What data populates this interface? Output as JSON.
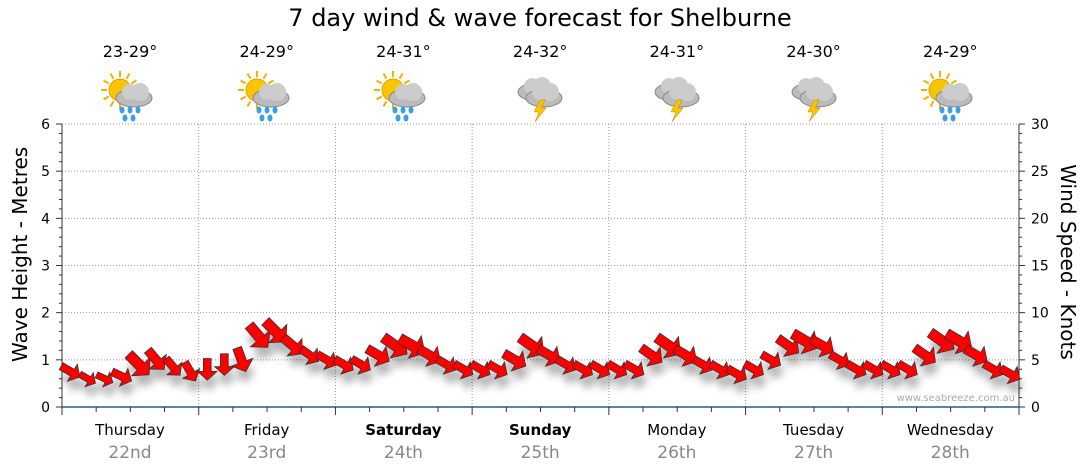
{
  "title": "7 day wind & wave forecast for Shelburne",
  "days": [
    {
      "name": "Thursday",
      "date": "22nd",
      "temp": "23-29°",
      "icon": "sun-cloud-rain-icon",
      "bold": false
    },
    {
      "name": "Friday",
      "date": "23rd",
      "temp": "24-29°",
      "icon": "sun-cloud-rain-icon",
      "bold": false
    },
    {
      "name": "Saturday",
      "date": "24th",
      "temp": "24-31°",
      "icon": "sun-cloud-rain-icon",
      "bold": true
    },
    {
      "name": "Sunday",
      "date": "25th",
      "temp": "24-32°",
      "icon": "storm-icon",
      "bold": true
    },
    {
      "name": "Monday",
      "date": "26th",
      "temp": "24-31°",
      "icon": "storm-icon",
      "bold": false
    },
    {
      "name": "Tuesday",
      "date": "27th",
      "temp": "24-30°",
      "icon": "storm-icon",
      "bold": false
    },
    {
      "name": "Wednesday",
      "date": "28th",
      "temp": "24-29°",
      "icon": "sun-cloud-rain-icon",
      "bold": false
    }
  ],
  "watermark": "www.seabreeze.com.au",
  "chart_data": {
    "type": "scatter",
    "title": "7 day wind & wave forecast for Shelburne",
    "ylabel": "Wave Height - Metres",
    "y2label": "Wind Speed - Knots",
    "ylim": [
      0,
      6
    ],
    "y2lim": [
      0,
      30
    ],
    "yticks": [
      "0",
      "1",
      "2",
      "3",
      "4",
      "5",
      "6"
    ],
    "y2ticks": [
      "0",
      "5",
      "10",
      "15",
      "20",
      "25",
      "30"
    ],
    "grid": true,
    "interval_hours": 3,
    "wave_height_m": [
      0.75,
      0.6,
      0.6,
      0.65,
      0.9,
      1.0,
      0.85,
      0.75,
      0.8,
      0.9,
      1.0,
      1.5,
      1.6,
      1.3,
      1.1,
      1.0,
      0.9,
      0.9,
      1.1,
      1.3,
      1.3,
      1.1,
      0.9,
      0.8,
      0.8,
      0.8,
      1.0,
      1.3,
      1.1,
      0.9,
      0.8,
      0.8,
      0.8,
      0.8,
      1.1,
      1.3,
      1.1,
      0.9,
      0.8,
      0.7,
      0.8,
      1.0,
      1.3,
      1.4,
      1.3,
      1.0,
      0.8,
      0.8,
      0.8,
      0.8,
      1.1,
      1.4,
      1.4,
      1.1,
      0.8,
      0.7
    ],
    "wind_knots": [
      6,
      5,
      5,
      6,
      8,
      7,
      6,
      6,
      6,
      6,
      7,
      8,
      8,
      7,
      6,
      6,
      6,
      6,
      7,
      8,
      8,
      7,
      6,
      6,
      6,
      6,
      7,
      8,
      7,
      6,
      6,
      6,
      6,
      6,
      7,
      8,
      7,
      6,
      6,
      6,
      6,
      6,
      7,
      8,
      7,
      6,
      6,
      6,
      6,
      6,
      7,
      8,
      8,
      7,
      6,
      6
    ],
    "wind_toward_deg": [
      120,
      120,
      115,
      115,
      135,
      140,
      140,
      150,
      180,
      180,
      160,
      140,
      135,
      130,
      125,
      120,
      120,
      120,
      120,
      125,
      120,
      120,
      120,
      120,
      120,
      120,
      120,
      125,
      120,
      120,
      120,
      120,
      120,
      120,
      125,
      125,
      120,
      120,
      120,
      120,
      120,
      120,
      125,
      120,
      120,
      120,
      120,
      120,
      120,
      120,
      125,
      125,
      120,
      120,
      120,
      120
    ]
  }
}
